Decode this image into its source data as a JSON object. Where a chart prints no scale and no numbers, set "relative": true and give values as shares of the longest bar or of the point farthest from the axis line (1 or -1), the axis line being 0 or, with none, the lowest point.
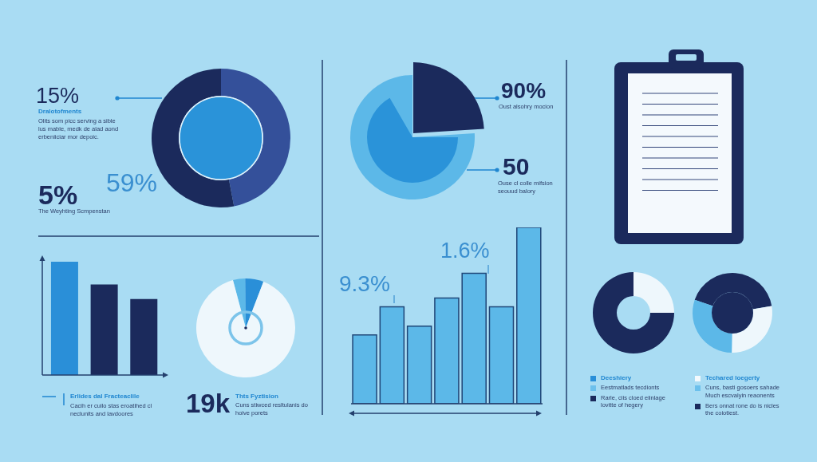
{
  "chart_data": [
    {
      "type": "donut",
      "categories": [
        null,
        null
      ],
      "values": [
        47,
        53
      ],
      "colors": [
        "#34509a",
        "#1b2a5c"
      ],
      "annotations": [
        "15%",
        "Dralotofments",
        "Olits som picc serving a sible\nlus mable, medk de alad aond\nerbeniiciar mor depoic.",
        "59%",
        "5%",
        "The Weyhting Scmpenstan"
      ]
    },
    {
      "type": "pie",
      "categories": [
        null,
        null
      ],
      "values": [
        24,
        76
      ],
      "colors": [
        "#1b2a5c",
        "#5cb8e8"
      ],
      "annotations": [
        "90%",
        "Oust alsohry mocion",
        "50",
        "Ouse cl colle mifsion\nseouud balory"
      ]
    },
    {
      "type": "bar",
      "relative": true,
      "categories": [
        null,
        null,
        null
      ],
      "values": [
        1,
        0.8,
        0.67
      ],
      "colors": [
        "#2a8fd8",
        "#1b2a5c",
        "#1b2a5c"
      ],
      "annotations": [
        "Erlides dal Fracteaclile",
        "Cacih er cuilo stas eroatihed cl\nneclunits and lavdoores"
      ]
    },
    {
      "type": "pie",
      "categories": [
        null,
        null,
        null
      ],
      "values": [
        4,
        6,
        90
      ],
      "colors": [
        "#5cb8e8",
        "#2a8fd8",
        "#eef7fc"
      ],
      "annotations": [
        "19k",
        "Thts Fyztision",
        "Cuns stiwced resltulanis do\nhoive porets"
      ]
    },
    {
      "type": "bar",
      "relative": true,
      "categories": [
        null,
        null,
        null,
        null,
        null,
        null,
        null
      ],
      "values": [
        0.39,
        0.55,
        0.44,
        0.6,
        0.74,
        0.55,
        1
      ],
      "color": "#5cb8e8",
      "annotations": [
        "9.3%",
        "1.6%"
      ]
    },
    {
      "type": "donut",
      "categories": [
        null,
        null
      ],
      "values": [
        25,
        75
      ],
      "colors": [
        "#eef7fc",
        "#1b2a5c"
      ]
    },
    {
      "type": "donut",
      "categories": [
        null,
        null,
        null
      ],
      "values": [
        42,
        28,
        30
      ],
      "colors": [
        "#1b2a5c",
        "#eef7fc",
        "#5cb8e8"
      ]
    },
    {
      "type": "other",
      "annotations": [
        "Deeshiery",
        "Eestmatlads tecdionts",
        "Rarle, ciis cloed eiinlage\nlovitte of hegery",
        "Techared Ioegerty",
        "Cuns, basti gosoers sahade\nMuch escvalyin reaonents",
        "Bers onnat rone do is nicles\nthe coiotiest."
      ],
      "colors": [
        "#2a8fd8",
        "#6cc0ec",
        "#1b2a5c",
        "#f3f9fd",
        "#6cc0ec",
        "#1b2a5c"
      ]
    }
  ]
}
